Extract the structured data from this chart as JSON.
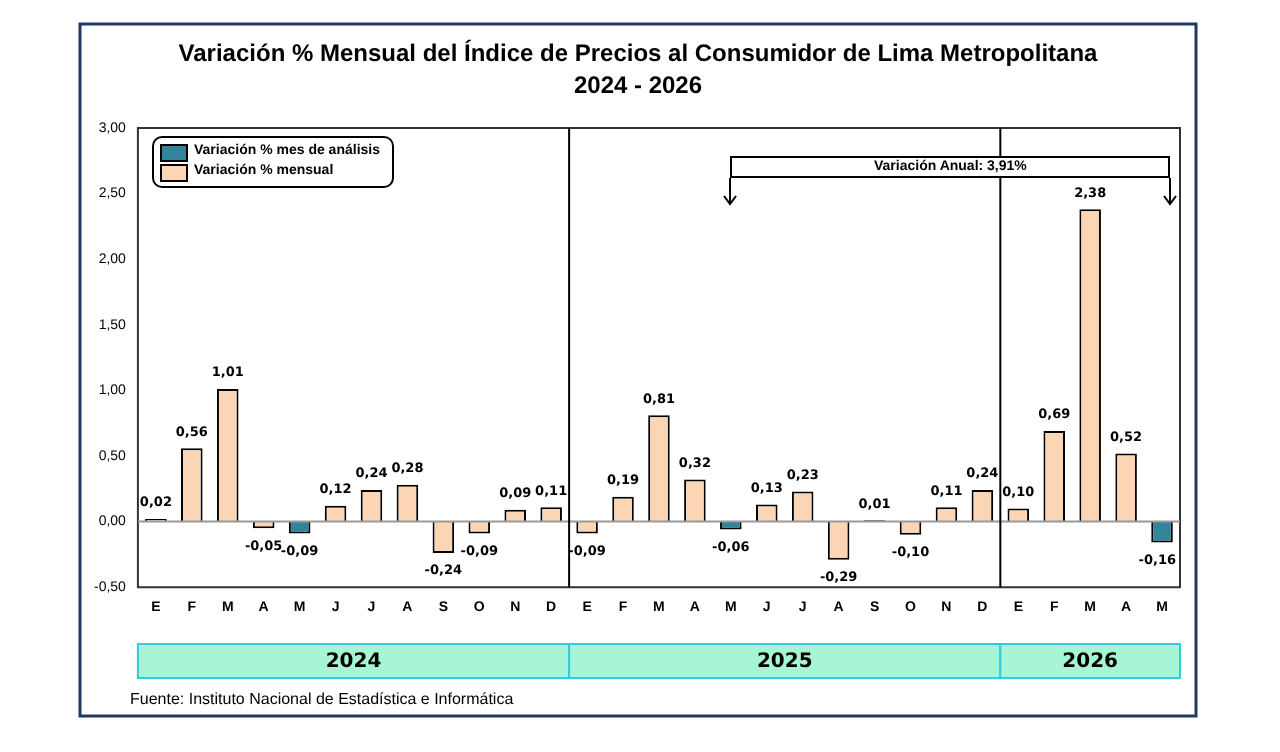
{
  "chart_data": {
    "type": "bar",
    "title": "Variación % Mensual del Índice de Precios al Consumidor de Lima Metropolitana",
    "subtitle": "2024 - 2026",
    "categories": [
      "E",
      "F",
      "M",
      "A",
      "M",
      "J",
      "J",
      "A",
      "S",
      "O",
      "N",
      "D",
      "E",
      "F",
      "M",
      "A",
      "M",
      "J",
      "J",
      "A",
      "S",
      "O",
      "N",
      "D",
      "E",
      "F",
      "M",
      "A",
      "M"
    ],
    "series": [
      {
        "name": "Variación % mes de análisis",
        "color": "#31849b",
        "values": [
          null,
          null,
          null,
          null,
          -0.09,
          null,
          null,
          null,
          null,
          null,
          null,
          null,
          null,
          null,
          null,
          null,
          -0.06,
          null,
          null,
          null,
          null,
          null,
          null,
          null,
          null,
          null,
          null,
          null,
          -0.16
        ],
        "value_labels": [
          null,
          null,
          null,
          null,
          "-0,09",
          null,
          null,
          null,
          null,
          null,
          null,
          null,
          null,
          null,
          null,
          null,
          "-0,06",
          null,
          null,
          null,
          null,
          null,
          null,
          null,
          null,
          null,
          null,
          null,
          "-0,16"
        ]
      },
      {
        "name": "Variación % mensual",
        "color": "#fcd5b4",
        "values": [
          0.02,
          0.56,
          1.01,
          -0.05,
          null,
          0.12,
          0.24,
          0.28,
          -0.24,
          -0.09,
          0.09,
          0.11,
          -0.09,
          0.19,
          0.81,
          0.32,
          null,
          0.13,
          0.23,
          -0.29,
          0.01,
          -0.1,
          0.11,
          0.24,
          0.1,
          0.69,
          2.38,
          0.52,
          null
        ],
        "value_labels": [
          "0,02",
          "0,56",
          "1,01",
          "-0,05",
          null,
          "0,12",
          "0,24",
          "0,28",
          "-0,24",
          "-0,09",
          "0,09",
          "0,11",
          "-0,09",
          "0,19",
          "0,81",
          "0,32",
          null,
          "0,13",
          "0,23",
          "-0,29",
          "0,01",
          "-0,10",
          "0,11",
          "0,24",
          "0,10",
          "0,69",
          "2,38",
          "0,52",
          null
        ]
      }
    ],
    "ylim": [
      -0.5,
      3
    ],
    "yticks": [
      {
        "value": -0.5,
        "label": "-0,50"
      },
      {
        "value": 0,
        "label": "0,00"
      },
      {
        "value": 0.5,
        "label": "0,50"
      },
      {
        "value": 1,
        "label": "1,00"
      },
      {
        "value": 1.5,
        "label": "1,50"
      },
      {
        "value": 2,
        "label": "2,00"
      },
      {
        "value": 2.5,
        "label": "2,50"
      },
      {
        "value": 3,
        "label": "3,00"
      }
    ],
    "grid": false,
    "legend": "top left",
    "annotations": [
      "2024",
      "2025",
      "2026",
      "Variación Anual: 3,91%",
      "Fuente: Instituto Nacional de Estadística e Informática"
    ]
  }
}
